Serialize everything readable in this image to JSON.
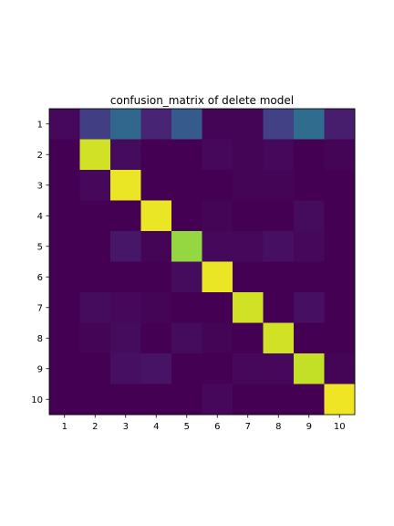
{
  "chart_data": {
    "type": "heatmap",
    "title": "confusion_matrix of delete model",
    "xlabel": "",
    "ylabel": "",
    "x_categories": [
      "1",
      "2",
      "3",
      "4",
      "5",
      "6",
      "7",
      "8",
      "9",
      "10"
    ],
    "y_categories": [
      "1",
      "2",
      "3",
      "4",
      "5",
      "6",
      "7",
      "8",
      "9",
      "10"
    ],
    "colormap": "viridis",
    "value_range": [
      0,
      1
    ],
    "grid": false,
    "legend": "none",
    "values": [
      [
        0.02,
        0.18,
        0.33,
        0.1,
        0.28,
        0.01,
        0.01,
        0.19,
        0.35,
        0.08
      ],
      [
        0.0,
        0.93,
        0.03,
        0.0,
        0.0,
        0.02,
        0.01,
        0.02,
        0.0,
        0.01
      ],
      [
        0.0,
        0.02,
        0.97,
        0.0,
        0.0,
        0.0,
        0.01,
        0.01,
        0.0,
        0.0
      ],
      [
        0.0,
        0.0,
        0.0,
        0.97,
        0.0,
        0.01,
        0.0,
        0.0,
        0.03,
        0.0
      ],
      [
        0.0,
        0.0,
        0.06,
        0.01,
        0.84,
        0.02,
        0.02,
        0.04,
        0.02,
        0.0
      ],
      [
        0.0,
        0.0,
        0.0,
        0.0,
        0.03,
        0.97,
        0.0,
        0.0,
        0.0,
        0.0
      ],
      [
        0.0,
        0.03,
        0.02,
        0.01,
        0.0,
        0.0,
        0.93,
        0.0,
        0.04,
        0.0
      ],
      [
        0.0,
        0.01,
        0.03,
        0.0,
        0.03,
        0.01,
        0.0,
        0.93,
        0.0,
        0.0
      ],
      [
        0.0,
        0.0,
        0.04,
        0.05,
        0.0,
        0.0,
        0.02,
        0.02,
        0.91,
        0.01
      ],
      [
        0.0,
        0.0,
        0.0,
        0.0,
        0.0,
        0.02,
        0.0,
        0.0,
        0.0,
        0.98
      ]
    ]
  }
}
